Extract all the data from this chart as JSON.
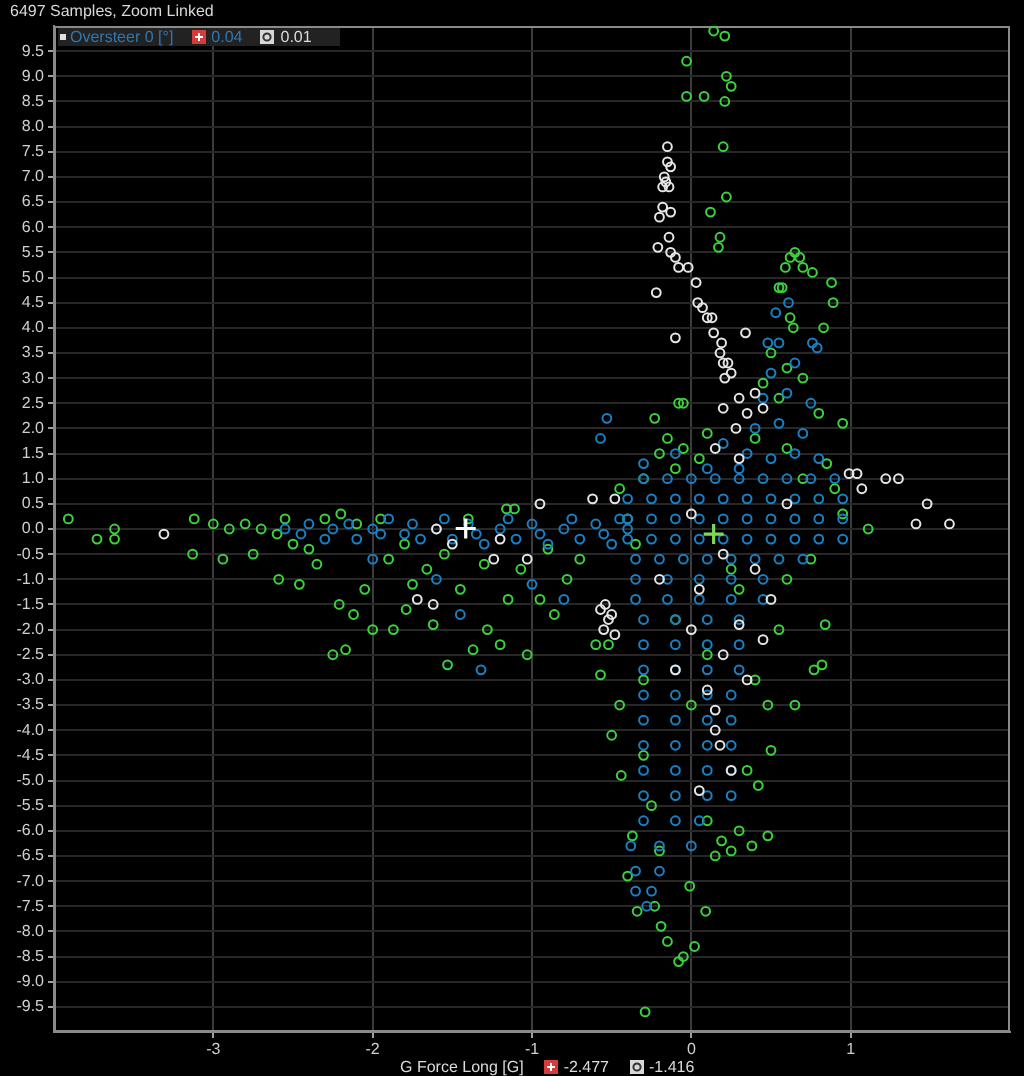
{
  "chart_data": {
    "type": "scatter",
    "title": "6497 Samples, Zoom Linked",
    "xlabel": "G Force Long [G]",
    "ylabel": "Oversteer 0 [°]",
    "annotations": [
      "0.04",
      "0.01",
      "-2.477",
      "-1.416"
    ],
    "xlim": [
      -4,
      2
    ],
    "ylim": [
      -10,
      10
    ],
    "xticks": [
      -3,
      -2,
      -1,
      0,
      1
    ],
    "yticks": [
      -9.5,
      {
        "value": -9,
        "label": "-9.0"
      },
      -8.5,
      {
        "value": -8,
        "label": "-8.0"
      },
      -7.5,
      {
        "value": -7,
        "label": "-7.0"
      },
      -6.5,
      {
        "value": -6,
        "label": "-6.0"
      },
      -5.5,
      {
        "value": -5,
        "label": "-5.0"
      },
      -4.5,
      {
        "value": -4,
        "label": "-4.0"
      },
      -3.5,
      {
        "value": -3,
        "label": "-3.0"
      },
      -2.5,
      {
        "value": -2,
        "label": "-2.0"
      },
      -1.5,
      {
        "value": -1,
        "label": "-1.0"
      },
      -0.5,
      {
        "value": 0,
        "label": "0.0"
      },
      0.5,
      {
        "value": 1,
        "label": "1.0"
      },
      1.5,
      {
        "value": 2,
        "label": "2.0"
      },
      2.5,
      {
        "value": 3,
        "label": "3.0"
      },
      3.5,
      {
        "value": 4,
        "label": "4.0"
      },
      4.5,
      {
        "value": 5,
        "label": "5.0"
      },
      5.5,
      {
        "value": 6,
        "label": "6.0"
      },
      6.5,
      {
        "value": 7,
        "label": "7.0"
      },
      7.5,
      {
        "value": 8,
        "label": "8.0"
      },
      8.5,
      {
        "value": 9,
        "label": "9.0"
      },
      9.5
    ],
    "grid": true,
    "marker": "circle",
    "series": [
      {
        "color": "#3cd23c",
        "x": [
          -3.91,
          -3.73,
          -3.62,
          -3.62,
          -3.12,
          -3.13,
          -2.94,
          -3.0,
          -2.9,
          -2.8,
          -2.7,
          -2.6,
          -2.75,
          -2.55,
          -2.5,
          -2.4,
          -2.3,
          -2.2,
          -2.59,
          -2.46,
          -2.35,
          -2.21,
          -2.12,
          -2.0,
          -1.87,
          -2.25,
          -2.17,
          -1.79,
          -1.62,
          -1.53,
          -1.37,
          -1.28,
          -1.2,
          -1.03,
          -0.95,
          -0.86,
          -0.78,
          -1.45,
          -1.66,
          -1.07,
          -1.9,
          -2.05,
          -1.75,
          -1.55,
          -1.3,
          -1.15,
          -0.9,
          -0.7,
          -2.1,
          -1.95,
          -1.8,
          -1.4,
          -1.11,
          -1.16,
          -0.6,
          0.14,
          0.21,
          -0.03,
          0.22,
          0.25,
          -0.03,
          0.08,
          0.21,
          0.2,
          0.22,
          0.12,
          0.18,
          0.17,
          0.65,
          0.62,
          0.68,
          0.59,
          0.7,
          0.76,
          0.88,
          0.89,
          0.55,
          0.57,
          0.83,
          0.62,
          0.64,
          0.5,
          0.6,
          0.7,
          0.45,
          0.95,
          0.55,
          0.8,
          0.85,
          0.9,
          0.95,
          1.11,
          0.7,
          0.6,
          0.4,
          -0.08,
          -0.05,
          -0.23,
          -0.15,
          -0.2,
          -0.1,
          -0.3,
          -0.05,
          0.05,
          0.1,
          -0.45,
          -0.4,
          -0.35,
          -0.57,
          -0.5,
          -0.44,
          -0.37,
          -0.4,
          -0.34,
          -0.45,
          -0.52,
          -0.3,
          -0.25,
          -0.3,
          -0.2,
          -0.23,
          -0.19,
          -0.01,
          0.09,
          -0.15,
          0.02,
          -0.08,
          -0.05,
          -0.29,
          0.1,
          0.19,
          0.25,
          0.3,
          0.38,
          0.15,
          0.82,
          0.65,
          0.77,
          0.84,
          0.48,
          0.5,
          0.42,
          0.48,
          0.35,
          0.4,
          0.55,
          0.3,
          0.1,
          -0.1,
          0.0,
          0.6,
          0.75,
          0.25
        ],
        "values": [
          0.2,
          -0.2,
          0.0,
          -0.2,
          0.2,
          -0.5,
          -0.6,
          0.1,
          0.0,
          0.1,
          0.0,
          -0.1,
          -0.5,
          0.2,
          -0.3,
          -0.4,
          0.2,
          0.3,
          -1.0,
          -1.1,
          -0.7,
          -1.5,
          -1.7,
          -2.0,
          -2.0,
          -2.5,
          -2.4,
          -1.6,
          -1.9,
          -2.7,
          -2.4,
          -2.0,
          -2.3,
          -2.5,
          -1.4,
          -1.7,
          -1.0,
          -1.2,
          -0.8,
          -0.8,
          -0.6,
          -1.2,
          -1.1,
          -0.5,
          -0.7,
          -1.4,
          -0.4,
          -0.6,
          0.1,
          0.2,
          -0.3,
          0.2,
          0.4,
          0.4,
          -2.3,
          9.9,
          9.8,
          9.3,
          9.0,
          8.8,
          8.6,
          8.6,
          8.5,
          7.6,
          6.6,
          6.3,
          5.8,
          5.6,
          5.5,
          5.4,
          5.4,
          5.2,
          5.2,
          5.1,
          4.9,
          4.5,
          4.8,
          4.8,
          4.0,
          4.2,
          4.0,
          3.5,
          3.2,
          3.0,
          2.9,
          2.1,
          2.6,
          2.3,
          1.3,
          0.8,
          0.3,
          0.0,
          1.0,
          1.6,
          1.8,
          2.5,
          2.5,
          2.2,
          1.8,
          1.5,
          1.2,
          1.0,
          1.6,
          1.4,
          1.9,
          0.8,
          0.2,
          -0.3,
          -2.9,
          -4.1,
          -4.9,
          -6.1,
          -6.9,
          -7.6,
          -3.5,
          -2.3,
          -3.0,
          -5.5,
          -4.5,
          -6.4,
          -7.5,
          -7.9,
          -7.1,
          -7.6,
          -8.2,
          -8.3,
          -8.6,
          -8.5,
          -9.6,
          -5.8,
          -6.2,
          -6.4,
          -6.0,
          -6.3,
          -6.5,
          -2.7,
          -3.5,
          -2.8,
          -1.9,
          -3.5,
          -4.4,
          -5.1,
          -6.1,
          -4.8,
          -3.0,
          -2.0,
          -1.2,
          -2.5,
          -1.8,
          -3.5,
          -1.0,
          -0.6,
          -0.8
        ]
      },
      {
        "color": "#1a80c4",
        "x": [
          -2.55,
          -2.45,
          -2.4,
          -2.3,
          -2.25,
          -2.15,
          -2.1,
          -2.0,
          -1.95,
          -1.9,
          -1.8,
          -1.75,
          -1.7,
          -1.6,
          -1.55,
          -1.5,
          -1.4,
          -1.35,
          -1.3,
          -1.2,
          -1.15,
          -1.1,
          -1.0,
          -0.95,
          -0.9,
          -0.8,
          -0.75,
          -0.7,
          -0.6,
          -0.55,
          -0.5,
          -0.45,
          -0.4,
          -1.45,
          -1.32,
          -1.6,
          -1.0,
          -0.8,
          -2.0,
          -0.53,
          -0.57,
          -0.3,
          -0.15,
          0.0,
          0.15,
          0.3,
          0.45,
          0.6,
          0.75,
          -0.4,
          -0.25,
          -0.1,
          0.05,
          0.2,
          0.35,
          0.5,
          0.65,
          0.8,
          0.95,
          -0.4,
          -0.25,
          -0.1,
          0.05,
          0.2,
          0.35,
          0.5,
          0.65,
          0.8,
          0.95,
          -0.4,
          -0.25,
          -0.1,
          0.05,
          0.2,
          0.35,
          0.5,
          0.65,
          0.8,
          0.95,
          -0.35,
          -0.2,
          -0.05,
          0.1,
          0.25,
          0.4,
          0.55,
          0.7,
          0.35,
          0.5,
          0.65,
          0.8,
          0.4,
          0.55,
          0.7,
          0.45,
          0.6,
          0.75,
          0.5,
          0.65,
          0.55,
          0.76,
          0.79,
          0.48,
          0.53,
          0.61,
          0.9,
          0.3,
          -0.3,
          -0.1,
          0.1,
          0.2,
          -0.35,
          -0.15,
          0.05,
          0.25,
          0.45,
          -0.35,
          -0.15,
          0.05,
          0.25,
          0.45,
          -0.3,
          -0.1,
          0.1,
          0.3,
          -0.3,
          -0.1,
          0.1,
          0.3,
          -0.3,
          -0.1,
          0.1,
          0.3,
          -0.3,
          -0.1,
          0.1,
          0.25,
          -0.3,
          -0.1,
          0.1,
          0.25,
          -0.3,
          -0.1,
          0.1,
          0.25,
          -0.3,
          -0.1,
          0.1,
          0.25,
          -0.3,
          -0.1,
          0.1,
          0.25,
          -0.3,
          -0.1,
          0.05,
          -0.38,
          -0.2,
          0.0,
          -0.35,
          -0.2,
          -0.35,
          -0.25,
          -0.28
        ],
        "values": [
          0.0,
          -0.1,
          0.1,
          -0.2,
          0.0,
          0.1,
          -0.2,
          0.0,
          -0.1,
          0.2,
          -0.1,
          0.1,
          -0.2,
          0.0,
          0.2,
          -0.2,
          0.1,
          -0.1,
          -0.3,
          0.0,
          0.2,
          -0.2,
          0.1,
          -0.1,
          -0.3,
          0.0,
          0.2,
          -0.2,
          0.1,
          -0.1,
          -0.3,
          0.2,
          0.0,
          -1.7,
          -2.8,
          -1.0,
          -1.1,
          -1.4,
          -0.6,
          2.2,
          1.8,
          1.0,
          1.0,
          1.0,
          1.0,
          1.0,
          1.0,
          1.0,
          1.0,
          0.6,
          0.6,
          0.6,
          0.6,
          0.6,
          0.6,
          0.6,
          0.6,
          0.6,
          0.6,
          0.2,
          0.2,
          0.2,
          0.2,
          0.2,
          0.2,
          0.2,
          0.2,
          0.2,
          0.2,
          -0.2,
          -0.2,
          -0.2,
          -0.2,
          -0.2,
          -0.2,
          -0.2,
          -0.2,
          -0.2,
          -0.2,
          -0.6,
          -0.6,
          -0.6,
          -0.6,
          -0.6,
          -0.6,
          -0.6,
          -0.6,
          1.5,
          1.4,
          1.5,
          1.4,
          2.0,
          2.1,
          1.9,
          2.6,
          2.7,
          2.5,
          3.1,
          3.3,
          3.7,
          3.7,
          3.6,
          3.7,
          4.3,
          4.5,
          1.0,
          1.2,
          1.3,
          1.5,
          1.2,
          1.7,
          -1.0,
          -1.0,
          -1.0,
          -1.0,
          -1.0,
          -1.4,
          -1.4,
          -1.4,
          -1.4,
          -1.4,
          -1.8,
          -1.8,
          -1.8,
          -1.8,
          -2.3,
          -2.3,
          -2.3,
          -2.3,
          -2.8,
          -2.8,
          -2.8,
          -2.8,
          -3.3,
          -3.3,
          -3.3,
          -3.3,
          -3.8,
          -3.8,
          -3.8,
          -3.8,
          -4.3,
          -4.3,
          -4.3,
          -4.3,
          -4.8,
          -4.8,
          -4.8,
          -4.8,
          -5.3,
          -5.3,
          -5.3,
          -5.3,
          -5.8,
          -5.8,
          -5.8,
          -6.3,
          -6.3,
          -6.3,
          -6.8,
          -6.8,
          -7.2,
          -7.2,
          -7.5
        ]
      },
      {
        "color": "#e6e6e6",
        "x": [
          -0.15,
          -0.15,
          -0.13,
          -0.17,
          -0.16,
          -0.18,
          -0.14,
          -0.18,
          -0.2,
          -0.13,
          -0.14,
          -0.21,
          -0.13,
          -0.1,
          -0.08,
          -0.02,
          0.03,
          -0.22,
          0.04,
          0.07,
          0.1,
          0.13,
          -0.1,
          0.14,
          0.19,
          0.18,
          0.2,
          0.23,
          0.25,
          0.21,
          0.34,
          0.3,
          0.35,
          0.2,
          0.28,
          0.4,
          0.45,
          0.15,
          0.3,
          0.99,
          1.04,
          1.22,
          1.3,
          1.48,
          1.41,
          1.62,
          1.07,
          -0.62,
          -0.95,
          -0.48,
          -1.72,
          -1.62,
          -1.24,
          -1.03,
          -1.2,
          -1.6,
          -3.31,
          -0.57,
          -0.52,
          -0.55,
          -0.5,
          -0.48,
          -0.54,
          -1.5,
          0.15,
          0.15,
          0.18,
          0.1,
          0.0,
          -0.1,
          0.2,
          0.3,
          0.05,
          -0.2,
          0.25,
          0.4,
          0.35,
          0.45,
          0.5,
          0.2,
          0.0,
          0.6,
          0.05
        ],
        "values": [
          7.6,
          7.3,
          7.2,
          7.0,
          6.9,
          6.8,
          6.8,
          6.4,
          6.2,
          6.3,
          5.8,
          5.6,
          5.5,
          5.4,
          5.2,
          5.2,
          4.9,
          4.7,
          4.5,
          4.4,
          4.2,
          4.2,
          3.8,
          3.9,
          3.7,
          3.5,
          3.3,
          3.3,
          3.1,
          3.0,
          3.9,
          2.6,
          2.3,
          2.4,
          2.0,
          2.7,
          2.4,
          1.6,
          1.4,
          1.1,
          1.1,
          1.0,
          1.0,
          0.5,
          0.1,
          0.1,
          0.8,
          0.6,
          0.5,
          0.6,
          -1.4,
          -1.5,
          -0.6,
          -0.6,
          -0.2,
          0.0,
          -0.1,
          -1.6,
          -1.8,
          -2.0,
          -1.7,
          -2.1,
          -1.5,
          -0.3,
          -3.6,
          -4.0,
          -4.3,
          -3.2,
          -2.0,
          -2.8,
          -2.5,
          -1.9,
          -1.2,
          -1.0,
          -4.8,
          -0.8,
          -3.0,
          -2.2,
          -1.4,
          -0.5,
          0.3,
          0.5,
          -5.2
        ]
      },
      {
        "color": "#ffffff",
        "marker": "cross",
        "x": [
          -1.416
        ],
        "values": [
          0.01
        ]
      },
      {
        "color": "#7ed957",
        "marker": "cross",
        "x": [
          0.14
        ],
        "values": [
          -0.1
        ]
      }
    ]
  }
}
